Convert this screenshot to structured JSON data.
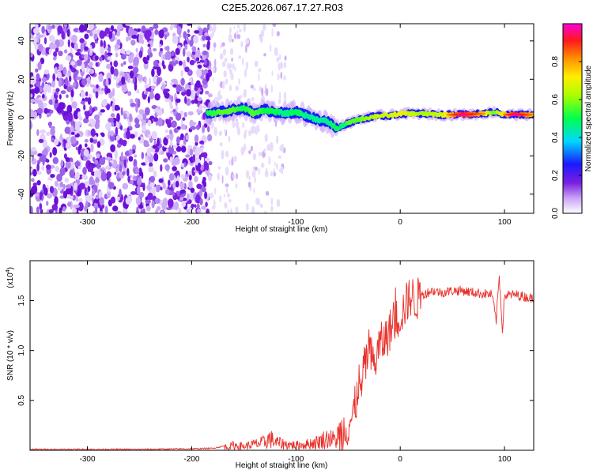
{
  "title": "C2E5.2026.067.17.27.R03",
  "colors": {
    "line": "#e8302a",
    "axis": "#000000",
    "background": "#ffffff"
  },
  "chart_data": [
    {
      "type": "heatmap",
      "name": "spectrogram",
      "xlabel": "Height of straight line (km)",
      "ylabel": "Frequency (Hz)",
      "xlim": [
        -355,
        128
      ],
      "ylim": [
        -50,
        49
      ],
      "xticks": [
        -300,
        -200,
        -100,
        0,
        100
      ],
      "xtick_labels": [
        "-300",
        "-200",
        "-100",
        "0",
        "100"
      ],
      "yticks": [
        40,
        20,
        0,
        -20,
        -40
      ],
      "ytick_labels": [
        "40",
        "20",
        "0",
        "-20",
        "-40"
      ],
      "colorbar": {
        "label": "Normalized spectral amplitude",
        "range": [
          0,
          1
        ],
        "ticks": [
          0.0,
          0.2,
          0.4,
          0.6,
          0.8
        ],
        "tick_labels": [
          "0.0",
          "0.2",
          "0.4",
          "0.6",
          "0.8"
        ],
        "colormap": [
          "#ffffff",
          "#7b1fe0",
          "#1a1aff",
          "#00d8ff",
          "#00ff4c",
          "#a8ff00",
          "#ffee00",
          "#ff8c00",
          "#ff1a1a",
          "#ff00d8"
        ]
      },
      "noise_region_km": [
        -355,
        -182
      ],
      "sparse_region_km": [
        -182,
        -110
      ],
      "signal_track": {
        "x": [
          -185,
          -170,
          -160,
          -150,
          -140,
          -130,
          -120,
          -110,
          -100,
          -90,
          -80,
          -70,
          -60,
          -55,
          -50,
          -40,
          -30,
          -20,
          -10,
          0,
          20,
          40,
          60,
          80,
          90,
          100,
          110,
          128
        ],
        "freq": [
          2,
          3,
          4,
          5,
          2,
          4,
          3,
          2,
          3,
          1,
          -1,
          -2,
          -6,
          -4,
          -3,
          -1,
          0,
          1,
          1,
          2,
          2,
          1.5,
          1.5,
          2,
          3,
          1.5,
          1.5,
          1.5
        ],
        "amplitude": [
          0.45,
          0.5,
          0.5,
          0.45,
          0.5,
          0.45,
          0.45,
          0.4,
          0.45,
          0.4,
          0.4,
          0.4,
          0.45,
          0.4,
          0.5,
          0.5,
          0.55,
          0.6,
          0.6,
          0.65,
          0.55,
          0.6,
          0.9,
          0.7,
          0.5,
          0.7,
          0.9,
          0.7
        ]
      }
    },
    {
      "type": "line",
      "name": "snr",
      "xlabel": "Height of straight line (km)",
      "ylabel": "SNR (10 * v/v)",
      "yscale_label": "(x10",
      "yscale_exp": "4",
      "yscale_close": ")",
      "xlim": [
        -355,
        128
      ],
      "ylim": [
        0,
        1.9
      ],
      "xticks": [
        -300,
        -200,
        -100,
        0,
        100
      ],
      "xtick_labels": [
        "-300",
        "-200",
        "-100",
        "0",
        "100"
      ],
      "yticks": [
        0.5,
        1.0,
        1.5
      ],
      "ytick_labels": [
        "0.5",
        "1.0",
        "1.5"
      ],
      "series": [
        {
          "name": "SNR",
          "x": [
            -355,
            -300,
            -250,
            -200,
            -180,
            -170,
            -165,
            -160,
            -150,
            -140,
            -130,
            -125,
            -120,
            -110,
            -100,
            -90,
            -80,
            -70,
            -60,
            -55,
            -50,
            -45,
            -42,
            -40,
            -38,
            -35,
            -30,
            -25,
            -20,
            -15,
            -10,
            -5,
            0,
            5,
            10,
            15,
            20,
            30,
            40,
            50,
            60,
            70,
            80,
            88,
            92,
            95,
            98,
            100,
            110,
            128
          ],
          "y": [
            0.01,
            0.01,
            0.01,
            0.015,
            0.02,
            0.04,
            0.03,
            0.05,
            0.04,
            0.06,
            0.08,
            0.12,
            0.08,
            0.06,
            0.05,
            0.06,
            0.08,
            0.12,
            0.1,
            0.2,
            0.25,
            0.35,
            0.5,
            0.7,
            0.55,
            0.8,
            1.0,
            0.85,
            1.05,
            1.1,
            1.2,
            1.3,
            1.35,
            1.45,
            1.55,
            1.5,
            1.55,
            1.6,
            1.58,
            1.6,
            1.6,
            1.58,
            1.57,
            1.56,
            1.3,
            1.75,
            1.2,
            1.55,
            1.56,
            1.52
          ],
          "color": "#e8302a"
        }
      ]
    }
  ]
}
